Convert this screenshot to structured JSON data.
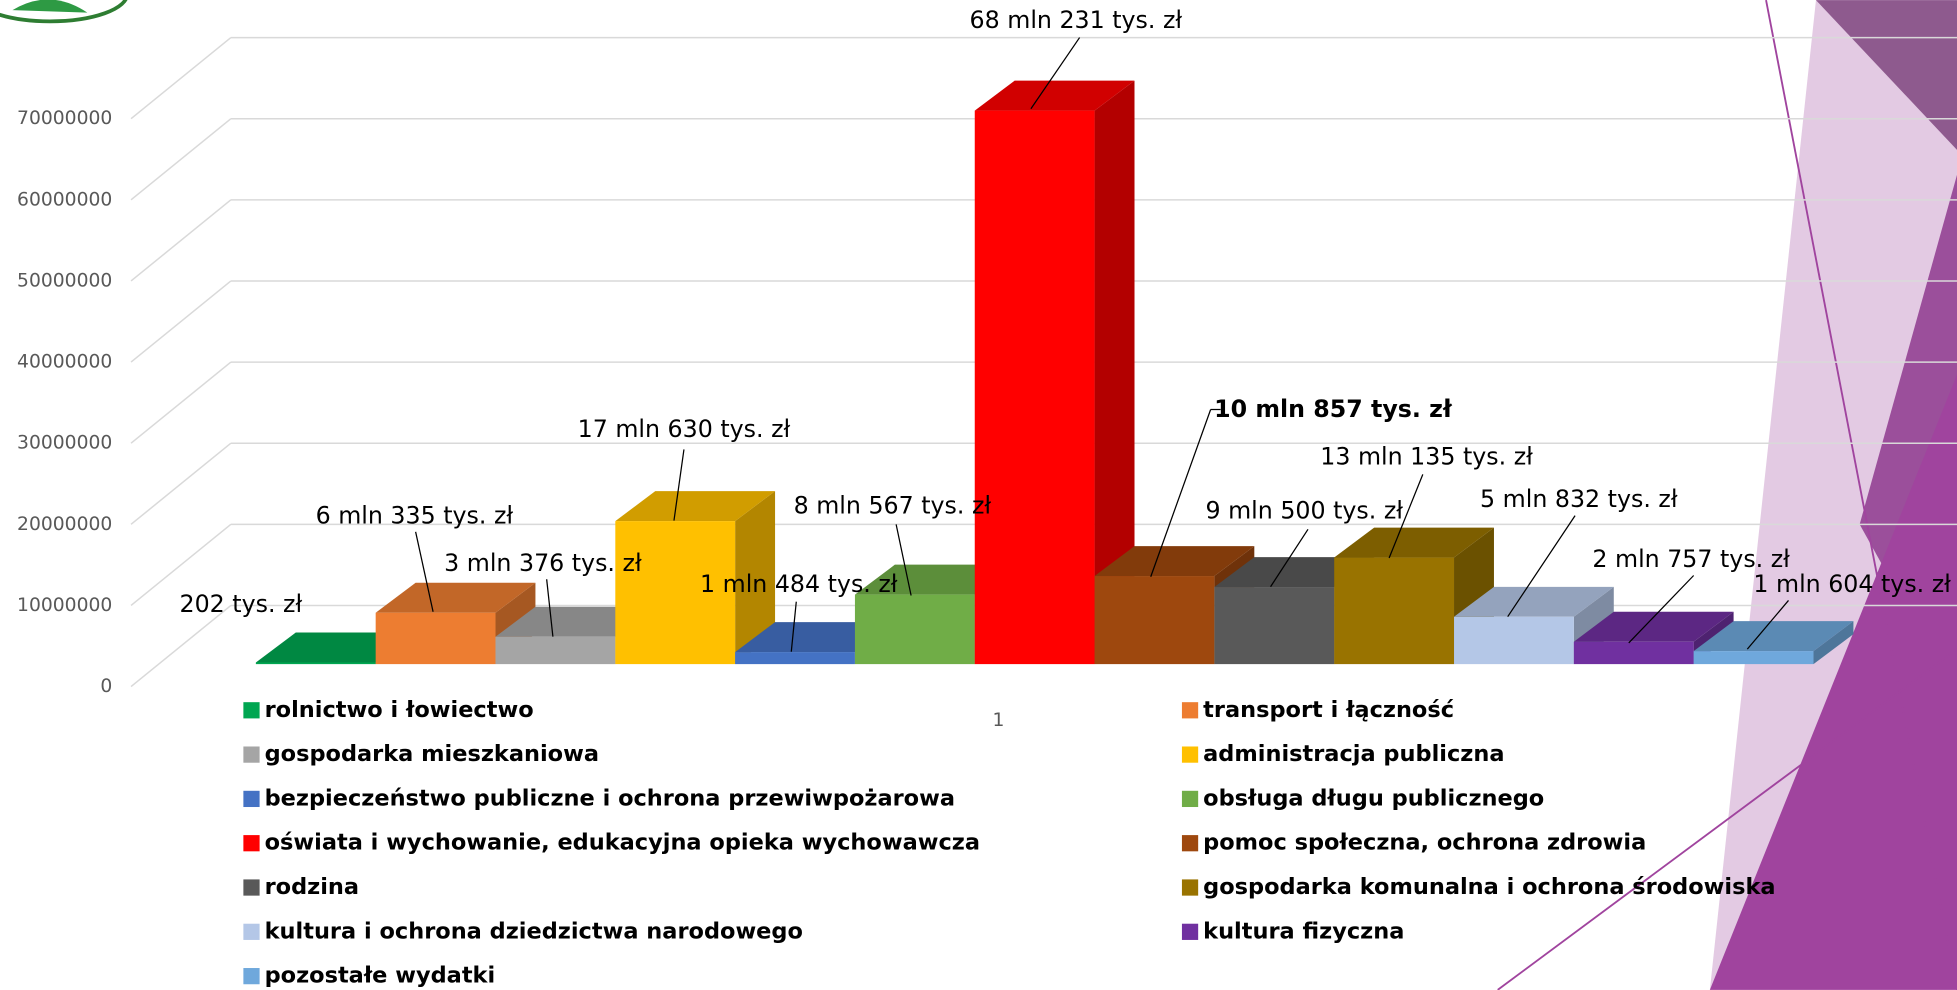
{
  "chart_data": {
    "type": "bar3d",
    "categories": [
      "1"
    ],
    "ylim": [
      0,
      70000000
    ],
    "yticks": [
      0,
      10000000,
      20000000,
      30000000,
      40000000,
      50000000,
      60000000,
      70000000
    ],
    "grid": true,
    "legend": "bottom",
    "series": [
      {
        "name": "rolnictwo i łowiectwo",
        "color": "#00a651",
        "values": [
          202000
        ],
        "value_labels": [
          "202 tys. zł"
        ]
      },
      {
        "name": "transport i łączność",
        "color": "#ed7d31",
        "values": [
          6335000
        ],
        "value_labels": [
          "6 mln 335 tys. zł"
        ]
      },
      {
        "name": "gospodarka mieszkaniowa",
        "color": "#a5a5a5",
        "values": [
          3376000
        ],
        "value_labels": [
          "3 mln 376 tys. zł"
        ]
      },
      {
        "name": "administracja publiczna",
        "color": "#ffc000",
        "values": [
          17630000
        ],
        "value_labels": [
          "17 mln 630 tys. zł"
        ]
      },
      {
        "name": "bezpieczeństwo publiczne i ochrona przewiwpożarowa",
        "color": "#4472c4",
        "values": [
          1484000
        ],
        "value_labels": [
          "1 mln 484 tys. zł"
        ]
      },
      {
        "name": "obsługa długu publicznego",
        "color": "#70ad47",
        "values": [
          8567000
        ],
        "value_labels": [
          "8 mln 567 tys. zł"
        ]
      },
      {
        "name": "oświata i wychowanie, edukacyjna opieka wychowawcza",
        "color": "#ff0000",
        "values": [
          68231000
        ],
        "value_labels": [
          "68 mln 231 tys. zł"
        ]
      },
      {
        "name": "pomoc społeczna, ochrona zdrowia",
        "color": "#9e480e",
        "values": [
          10857000
        ],
        "value_labels": [
          "10 mln 857 tys. zł"
        ]
      },
      {
        "name": "rodzina",
        "color": "#595959",
        "values": [
          9500000
        ],
        "value_labels": [
          "9 mln 500 tys. zł"
        ]
      },
      {
        "name": "gospodarka komunalna i ochrona środowiska",
        "color": "#997300",
        "values": [
          13135000
        ],
        "value_labels": [
          "13 mln 135 tys. zł"
        ]
      },
      {
        "name": "kultura i ochrona dziedzictwa narodowego",
        "color": "#b4c7e7",
        "values": [
          5832000
        ],
        "value_labels": [
          "5 mln 832 tys. zł"
        ]
      },
      {
        "name": "kultura fizyczna",
        "color": "#7030a0",
        "values": [
          2757000
        ],
        "value_labels": [
          "2 mln 757 tys. zł"
        ]
      },
      {
        "name": "pozostałe wydatki",
        "color": "#6fa8dc",
        "values": [
          1604000
        ],
        "value_labels": [
          "1 mln 604 tys. zł"
        ]
      }
    ]
  }
}
